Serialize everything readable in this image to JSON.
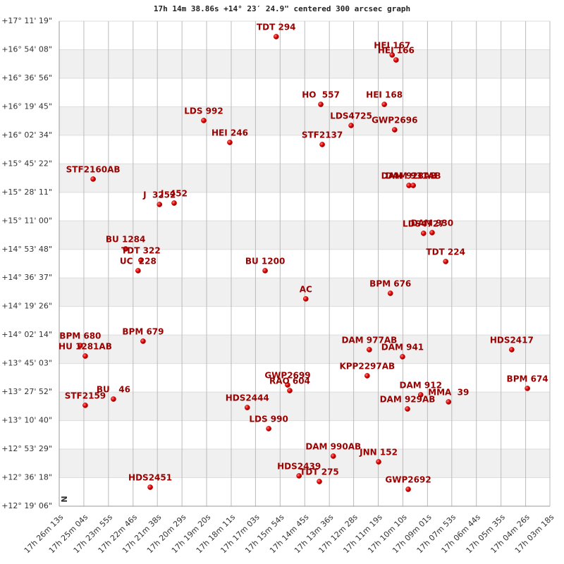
{
  "chart_data": {
    "type": "scatter",
    "title": "17h 14m 38.86s +14° 23′ 24.9\" centered 300 arcsec graph",
    "north_label": "N",
    "xlim": [
      1573,
      198
    ],
    "ylim": [
      12.31833,
      17.18861
    ],
    "bands": true,
    "color": "#cc0000",
    "label_color": "#990000",
    "xticks": [
      {
        "value": 1573,
        "label": "17h 26m 13s"
      },
      {
        "value": 1504,
        "label": "17h 25m 04s"
      },
      {
        "value": 1435,
        "label": "17h 23m 55s"
      },
      {
        "value": 1366,
        "label": "17h 22m 46s"
      },
      {
        "value": 1298,
        "label": "17h 21m 38s"
      },
      {
        "value": 1229,
        "label": "17h 20m 29s"
      },
      {
        "value": 1160,
        "label": "17h 19m 20s"
      },
      {
        "value": 1091,
        "label": "17h 18m 11s"
      },
      {
        "value": 1023,
        "label": "17h 17m 03s"
      },
      {
        "value": 954,
        "label": "17h 15m 54s"
      },
      {
        "value": 885,
        "label": "17h 14m 45s"
      },
      {
        "value": 816,
        "label": "17h 13m 36s"
      },
      {
        "value": 748,
        "label": "17h 12m 28s"
      },
      {
        "value": 679,
        "label": "17h 11m 19s"
      },
      {
        "value": 610,
        "label": "17h 10m 10s"
      },
      {
        "value": 541,
        "label": "17h 09m 01s"
      },
      {
        "value": 473,
        "label": "17h 07m 53s"
      },
      {
        "value": 404,
        "label": "17h 06m 44s"
      },
      {
        "value": 335,
        "label": "17h 05m 35s"
      },
      {
        "value": 266,
        "label": "17h 04m 26s"
      },
      {
        "value": 198,
        "label": "17h 03m 18s"
      }
    ],
    "yticks": [
      {
        "value": 17.18861,
        "label": "+17° 11' 19\""
      },
      {
        "value": 16.90222,
        "label": "+16° 54' 08\""
      },
      {
        "value": 16.61556,
        "label": "+16° 36' 56\""
      },
      {
        "value": 16.32917,
        "label": "+16° 19' 45\""
      },
      {
        "value": 16.04278,
        "label": "+16° 02' 34\""
      },
      {
        "value": 15.75611,
        "label": "+15° 45' 22\""
      },
      {
        "value": 15.46972,
        "label": "+15° 28' 11\""
      },
      {
        "value": 15.18333,
        "label": "+15° 11' 00\""
      },
      {
        "value": 14.89667,
        "label": "+14° 53' 48\""
      },
      {
        "value": 14.61028,
        "label": "+14° 36' 37\""
      },
      {
        "value": 14.32389,
        "label": "+14° 19' 26\""
      },
      {
        "value": 14.03722,
        "label": "+14° 02' 14\""
      },
      {
        "value": 13.75083,
        "label": "+13° 45' 03\""
      },
      {
        "value": 13.46444,
        "label": "+13° 27' 52\""
      },
      {
        "value": 13.17778,
        "label": "+13° 10' 40\""
      },
      {
        "value": 12.89139,
        "label": "+12° 53' 29\""
      },
      {
        "value": 12.605,
        "label": "+12° 36' 18\""
      },
      {
        "value": 12.31833,
        "label": "+12° 19' 06\""
      }
    ],
    "point_labels": [
      "TDT 294",
      "HEI 167",
      "HEI 166",
      "HO  557",
      "HEI 168",
      "LDS 992",
      "LDS4725",
      "GWP2696",
      "HEI 246",
      "STF2137",
      "STF2160AB",
      "DAM 928AB",
      "DAM 931AB",
      "J  3252",
      "J  452",
      "LDS4727",
      "DAM 930",
      "BU 1284",
      "TDT 322",
      "UC  228",
      "TDT 224",
      "BU 1200",
      "BPM 676",
      "AC",
      "BPM 679",
      "BPM 680",
      "HU 1281AB",
      "DAM 977AB",
      "DAM 941",
      "HDS2417",
      "KPP2297AB",
      "GWP2699",
      "RAO 604",
      "BPM 674",
      "BU   46",
      "STF2159",
      "DAM 912",
      "MMA  39",
      "DAM 929AB",
      "HDS2444",
      "LDS 990",
      "DAM 990AB",
      "JNN 152",
      "HDS2439",
      "TDT 275",
      "HDS2451",
      "GWP2692"
    ],
    "x": [
      965,
      640,
      629,
      840,
      662,
      1168,
      755,
      633,
      1095,
      836,
      1478,
      593,
      581,
      1292,
      1251,
      552,
      528,
      1387,
      1344,
      1352,
      490,
      996,
      645,
      882,
      1338,
      1514,
      1500,
      704,
      611,
      305,
      710,
      933,
      927,
      261,
      1421,
      1500,
      560,
      482,
      597,
      1046,
      986,
      805,
      678,
      901,
      844,
      1318,
      595
    ],
    "values": [
      17.033,
      16.849,
      16.799,
      16.353,
      16.353,
      16.191,
      16.141,
      16.098,
      15.971,
      15.95,
      15.603,
      15.539,
      15.539,
      15.348,
      15.362,
      15.058,
      15.065,
      14.902,
      14.789,
      14.683,
      14.775,
      14.683,
      14.456,
      14.4,
      13.975,
      13.932,
      13.826,
      13.89,
      13.819,
      13.89,
      13.628,
      13.536,
      13.479,
      13.501,
      13.394,
      13.331,
      13.437,
      13.366,
      13.295,
      13.309,
      13.097,
      12.821,
      12.764,
      12.623,
      12.566,
      12.509,
      12.488
    ]
  }
}
